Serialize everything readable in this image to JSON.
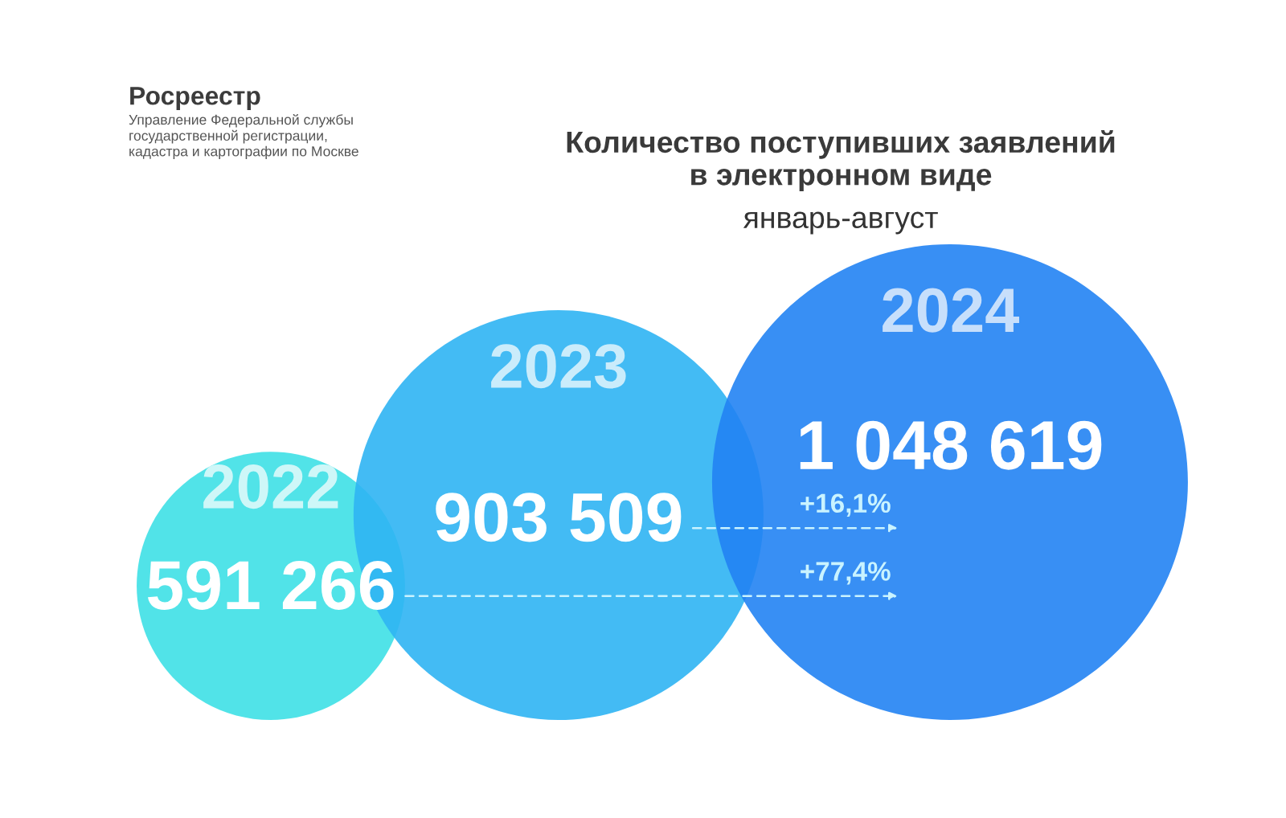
{
  "chart_data": {
    "type": "other",
    "title": "Количество поступивших заявлений\nв электронном виде",
    "subtitle": "январь-август",
    "categories": [
      "2022",
      "2023",
      "2024"
    ],
    "values": [
      591266,
      903509,
      1048619
    ],
    "value_labels": [
      "591 266",
      "903 509",
      "1 048 619"
    ],
    "colors": [
      "#3ee0e6",
      "#2fb4f3",
      "#2283f3"
    ],
    "annotations": [
      {
        "text": "+16,1%"
      },
      {
        "text": "+77,4%"
      },
      "Росреестр",
      "Управление Федеральной службы\nгосударственной регистрации,\nкадастра и картографии по Москве"
    ]
  }
}
